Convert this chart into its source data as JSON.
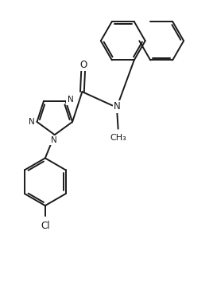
{
  "background_color": "#ffffff",
  "line_color": "#1a1a1a",
  "line_width": 1.4,
  "font_size": 8.5,
  "fig_width": 2.68,
  "fig_height": 3.74,
  "dpi": 100,
  "xlim": [
    0,
    10
  ],
  "ylim": [
    0,
    14
  ]
}
